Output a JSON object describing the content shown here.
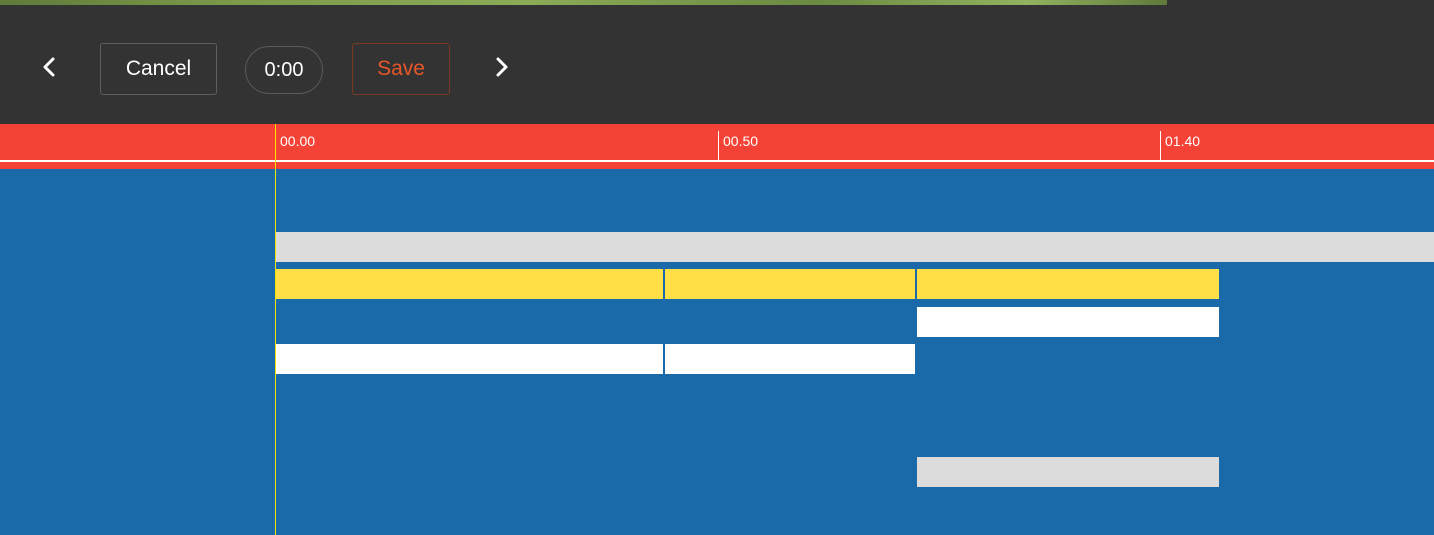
{
  "toolbar": {
    "prev_icon": "chevron-left-icon",
    "next_icon": "chevron-right-icon",
    "cancel_label": "Cancel",
    "time_label": "0:00",
    "save_label": "Save",
    "save_color": "#e8562a"
  },
  "ruler": {
    "ticks": [
      "00.00",
      "00.50",
      "01.40"
    ],
    "color": "#f44336"
  },
  "timeline": {
    "background": "#1a69a9",
    "playhead_color": "#f5e600"
  }
}
